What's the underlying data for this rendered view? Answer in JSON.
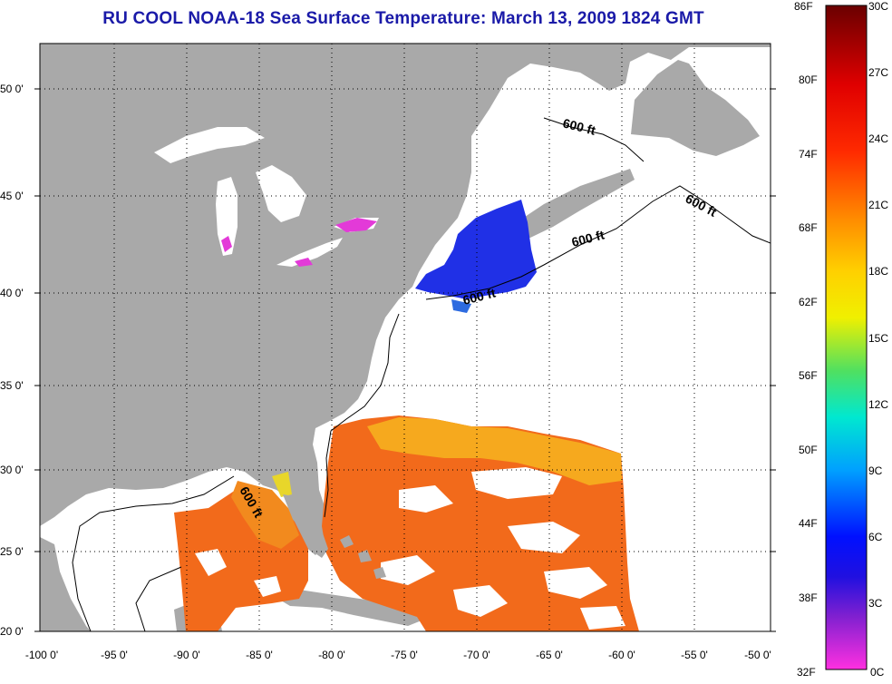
{
  "title": "RU COOL  NOAA-18  Sea Surface Temperature:  March 13, 2009 1824 GMT",
  "map": {
    "lat_labels": [
      "50 0'",
      "45 0'",
      "40 0'",
      "35 0'",
      "30 0'",
      "25 0'",
      "20 0'"
    ],
    "lon_labels": [
      "-100 0'",
      "-95 0'",
      "-90 0'",
      "-85 0'",
      "-80 0'",
      "-75 0'",
      "-70 0'",
      "-65 0'",
      "-60 0'",
      "-55 0'",
      "-50 0'"
    ],
    "isobath_label": "600 ft",
    "colors": {
      "land": "#a9a9a9",
      "ocean_no_data": "#ffffff",
      "warm": "#f26a1b",
      "orange": "#f28a1e",
      "cold": "#2030e6",
      "pink": "#e33ad8"
    }
  },
  "colorbar": {
    "fahrenheit": [
      "86F",
      "80F",
      "74F",
      "68F",
      "62F",
      "56F",
      "50F",
      "44F",
      "38F",
      "32F"
    ],
    "celsius": [
      "30C",
      "27C",
      "24C",
      "21C",
      "18C",
      "15C",
      "12C",
      "9C",
      "6C",
      "3C",
      "0C"
    ]
  }
}
